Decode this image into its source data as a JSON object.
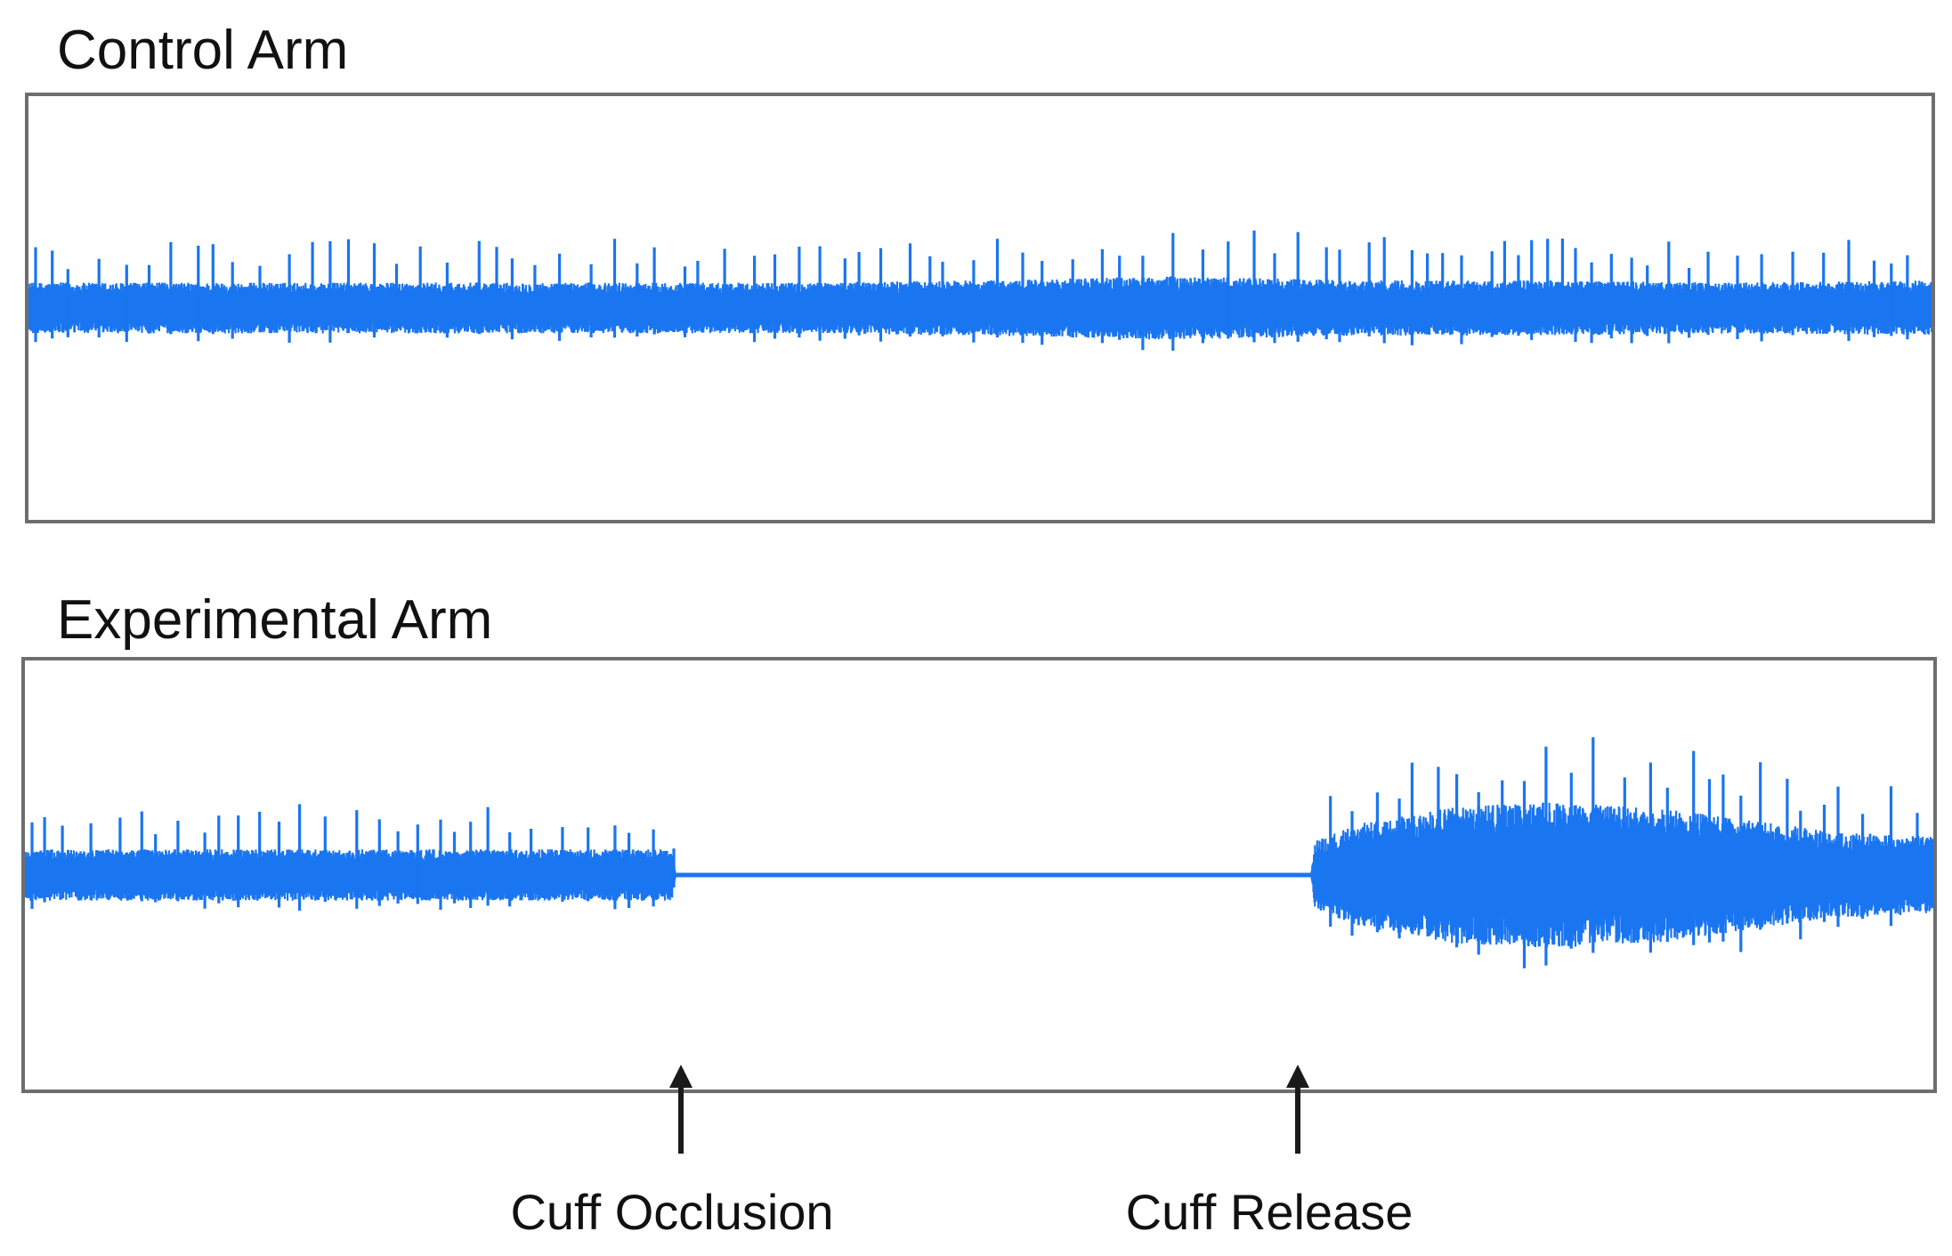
{
  "chart_data": [
    {
      "type": "line",
      "title": "Control Arm",
      "xlabel": "",
      "ylabel": "",
      "grid": false,
      "legend": "none",
      "signal_color": "#1a75f0",
      "signal_profile": {
        "x": [
          0,
          10,
          20,
          30,
          40,
          50,
          60,
          70,
          80,
          90,
          100
        ],
        "baseline_amplitude": [
          0.12,
          0.12,
          0.12,
          0.12,
          0.12,
          0.13,
          0.15,
          0.13,
          0.13,
          0.12,
          0.13
        ],
        "spike_amplitude": [
          0.3,
          0.32,
          0.34,
          0.33,
          0.3,
          0.34,
          0.38,
          0.36,
          0.34,
          0.3,
          0.34
        ]
      },
      "annotations": []
    },
    {
      "type": "line",
      "title": "Experimental Arm",
      "xlabel": "",
      "ylabel": "",
      "grid": false,
      "legend": "none",
      "signal_color": "#1a75f0",
      "signal_profile": {
        "x": [
          0,
          5,
          10,
          15,
          20,
          25,
          30,
          33.9,
          34.1,
          50,
          67.4,
          67.6,
          70,
          75,
          80,
          85,
          90,
          95,
          100
        ],
        "baseline_amplitude": [
          0.12,
          0.12,
          0.12,
          0.12,
          0.12,
          0.12,
          0.12,
          0.12,
          0.004,
          0.004,
          0.004,
          0.16,
          0.24,
          0.32,
          0.34,
          0.32,
          0.26,
          0.2,
          0.18
        ],
        "spike_amplitude": [
          0.3,
          0.3,
          0.32,
          0.34,
          0.33,
          0.32,
          0.3,
          0.28,
          0.0,
          0.0,
          0.0,
          0.4,
          0.48,
          0.62,
          0.66,
          0.64,
          0.56,
          0.46,
          0.42
        ]
      },
      "annotations": [
        {
          "label": "Cuff Occlusion",
          "x": 34
        },
        {
          "label": "Cuff Release",
          "x": 67.5
        }
      ]
    }
  ]
}
